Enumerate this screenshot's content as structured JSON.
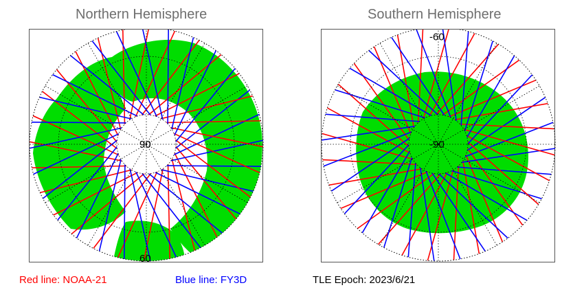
{
  "north": {
    "title": "Northern Hemisphere",
    "center_label": "90",
    "edge_label": "60"
  },
  "south": {
    "title": "Southern Hemisphere",
    "center_label": "-90",
    "edge_label": "-60"
  },
  "legend": {
    "red_label": "Red line: NOAA-21",
    "blue_label": "Blue line: FY3D",
    "epoch_label": "TLE Epoch: 2023/6/21"
  },
  "colors": {
    "land": "#00dd00",
    "noaa21_track": "#ff0000",
    "fy3d_track": "#0000ff",
    "title_text": "#6e6e6e",
    "frame": "#555555"
  },
  "icons": {
    "north": "north-polar-map",
    "south": "south-polar-map"
  }
}
